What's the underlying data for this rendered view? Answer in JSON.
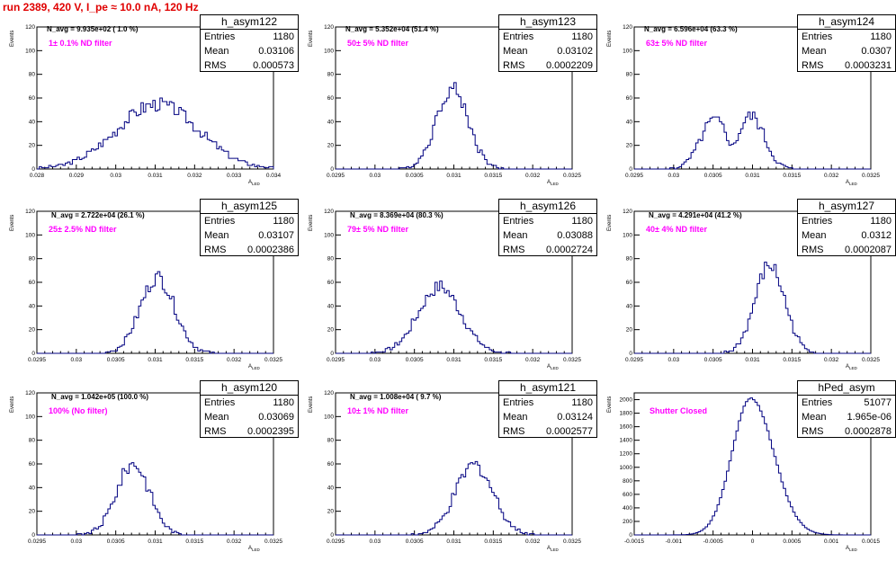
{
  "run_title": "run 2389,   420 V, I_pe ≈ 10.0 nA, 120 Hz",
  "y_axis_title": "Events",
  "x_axis_title": "A",
  "x_axis_subscript": "LED",
  "colors": {
    "histogram": "#000080",
    "title": "#e00000",
    "filter_text": "#ff00ff"
  },
  "chart_data": [
    {
      "type": "histogram",
      "name": "h_asym122",
      "entries": "1180",
      "mean": "0.03106",
      "rms": "0.000573",
      "n_avg_text": "N_avg = 9.935e+02 ( 1.0 %)",
      "filter_text": "1± 0.1% ND filter",
      "xlim": [
        0.028,
        0.034
      ],
      "ylim": [
        0,
        120
      ],
      "xticks": [
        "0.028",
        "0.029",
        "0.03",
        "0.031",
        "0.032",
        "0.033",
        "0.034"
      ],
      "yticks": [
        "0",
        "20",
        "40",
        "60",
        "80",
        "100",
        "120"
      ],
      "mean_value": 0.03106,
      "sigma_value": 0.000573,
      "peak": 55,
      "shape": "gauss",
      "width_factor": 1.8
    },
    {
      "type": "histogram",
      "name": "h_asym123",
      "entries": "1180",
      "mean": "0.03102",
      "rms": "0.0002209",
      "n_avg_text": "N_avg = 5.352e+04 (51.4 %)",
      "filter_text": "50± 5% ND filter",
      "xlim": [
        0.0295,
        0.0325
      ],
      "ylim": [
        0,
        120
      ],
      "xticks": [
        "0.0295",
        "0.03",
        "0.0305",
        "0.031",
        "0.0315",
        "0.032",
        "0.0325"
      ],
      "yticks": [
        "0",
        "20",
        "40",
        "60",
        "80",
        "100",
        "120"
      ],
      "mean_value": 0.03098,
      "sigma_value": 0.00017,
      "peak": 68,
      "shape": "gauss",
      "width_factor": 1.2
    },
    {
      "type": "histogram",
      "name": "h_asym124",
      "entries": "1180",
      "mean": "0.0307",
      "rms": "0.0003231",
      "n_avg_text": "N_avg = 6.596e+04 (63.3 %)",
      "filter_text": "63± 5% ND filter",
      "xlim": [
        0.0295,
        0.0325
      ],
      "ylim": [
        0,
        120
      ],
      "xticks": [
        "0.0295",
        "0.03",
        "0.0305",
        "0.031",
        "0.0315",
        "0.032",
        "0.0325"
      ],
      "yticks": [
        "0",
        "20",
        "40",
        "60",
        "80",
        "100",
        "120"
      ],
      "mean_value": 0.0307,
      "sigma_value": 0.0003231,
      "peak": 45,
      "shape": "double",
      "width_factor": 1.0
    },
    {
      "type": "histogram",
      "name": "h_asym125",
      "entries": "1180",
      "mean": "0.03107",
      "rms": "0.0002386",
      "n_avg_text": "N_avg = 2.722e+04 (26.1 %)",
      "filter_text": "25± 2.5% ND filter",
      "xlim": [
        0.0295,
        0.0325
      ],
      "ylim": [
        0,
        120
      ],
      "xticks": [
        "0.0295",
        "0.03",
        "0.0305",
        "0.031",
        "0.0315",
        "0.032",
        "0.0325"
      ],
      "yticks": [
        "0",
        "20",
        "40",
        "60",
        "80",
        "100",
        "120"
      ],
      "mean_value": 0.03103,
      "sigma_value": 0.00022,
      "peak": 64,
      "shape": "gauss",
      "width_factor": 1.0
    },
    {
      "type": "histogram",
      "name": "h_asym126",
      "entries": "1180",
      "mean": "0.03088",
      "rms": "0.0002724",
      "n_avg_text": "N_avg = 8.369e+04 (80.3 %)",
      "filter_text": "79± 5% ND filter",
      "xlim": [
        0.0295,
        0.0325
      ],
      "ylim": [
        0,
        120
      ],
      "xticks": [
        "0.0295",
        "0.03",
        "0.0305",
        "0.031",
        "0.0315",
        "0.032",
        "0.0325"
      ],
      "yticks": [
        "0",
        "20",
        "40",
        "60",
        "80",
        "100",
        "120"
      ],
      "mean_value": 0.03082,
      "sigma_value": 0.00027,
      "peak": 56,
      "shape": "gauss",
      "width_factor": 1.0
    },
    {
      "type": "histogram",
      "name": "h_asym127",
      "entries": "1180",
      "mean": "0.0312",
      "rms": "0.0002087",
      "n_avg_text": "N_avg = 4.291e+04 (41.2 %)",
      "filter_text": "40± 4% ND filter",
      "xlim": [
        0.0295,
        0.0325
      ],
      "ylim": [
        0,
        120
      ],
      "xticks": [
        "0.0295",
        "0.03",
        "0.0305",
        "0.031",
        "0.0315",
        "0.032",
        "0.0325"
      ],
      "yticks": [
        "0",
        "20",
        "40",
        "60",
        "80",
        "100",
        "120"
      ],
      "mean_value": 0.03122,
      "sigma_value": 0.00019,
      "peak": 74,
      "shape": "gauss",
      "width_factor": 1.0
    },
    {
      "type": "histogram",
      "name": "h_asym120",
      "entries": "1180",
      "mean": "0.03069",
      "rms": "0.0002395",
      "n_avg_text": "N_avg = 1.042e+05 (100.0 %)",
      "filter_text": "100% (No filter)",
      "xlim": [
        0.0295,
        0.0325
      ],
      "ylim": [
        0,
        120
      ],
      "xticks": [
        "0.0295",
        "0.03",
        "0.0305",
        "0.031",
        "0.0315",
        "0.032",
        "0.0325"
      ],
      "yticks": [
        "0",
        "20",
        "40",
        "60",
        "80",
        "100",
        "120"
      ],
      "mean_value": 0.03072,
      "sigma_value": 0.00021,
      "peak": 60,
      "shape": "gauss",
      "width_factor": 1.0
    },
    {
      "type": "histogram",
      "name": "h_asym121",
      "entries": "1180",
      "mean": "0.03124",
      "rms": "0.0002577",
      "n_avg_text": "N_avg = 1.008e+04 ( 9.7 %)",
      "filter_text": "10± 1% ND filter",
      "xlim": [
        0.0295,
        0.0325
      ],
      "ylim": [
        0,
        120
      ],
      "xticks": [
        "0.0295",
        "0.03",
        "0.0305",
        "0.031",
        "0.0315",
        "0.032",
        "0.0325"
      ],
      "yticks": [
        "0",
        "20",
        "40",
        "60",
        "80",
        "100",
        "120"
      ],
      "mean_value": 0.03126,
      "sigma_value": 0.00024,
      "peak": 59,
      "shape": "gauss",
      "width_factor": 1.0
    },
    {
      "type": "histogram",
      "name": "hPed_asym",
      "entries": "51077",
      "mean": "1.965e-06",
      "rms": "0.0002878",
      "n_avg_text": "",
      "filter_text": "Shutter Closed",
      "xlim": [
        -0.0015,
        0.0015
      ],
      "ylim": [
        0,
        2100
      ],
      "xticks": [
        "-0.0015",
        "-0.001",
        "-0.0005",
        "0",
        "0.0005",
        "0.001",
        "0.0015"
      ],
      "yticks": [
        "0",
        "200",
        "400",
        "600",
        "800",
        "1000",
        "1200",
        "1400",
        "1600",
        "1800",
        "2000"
      ],
      "mean_value": -2e-05,
      "sigma_value": 0.00025,
      "peak": 2020,
      "shape": "ped",
      "width_factor": 1.0
    }
  ]
}
